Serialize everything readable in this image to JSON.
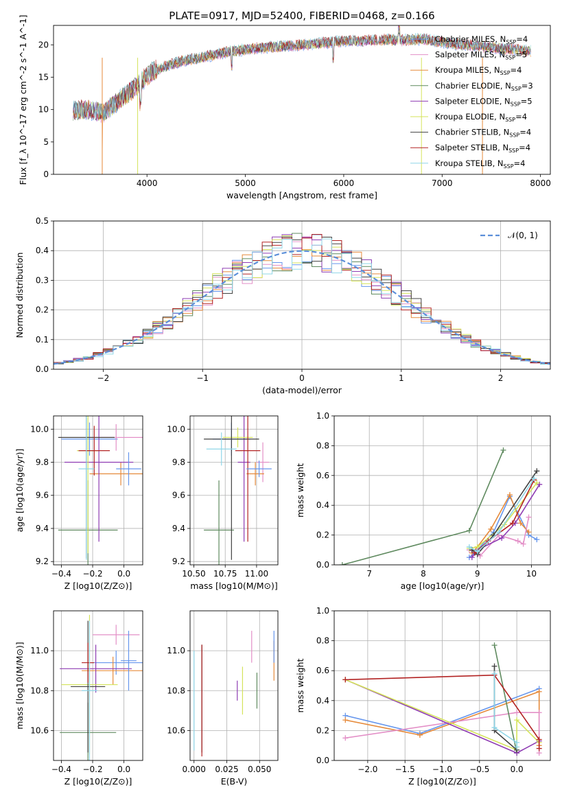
{
  "figure_title": "PLATE=0917, MJD=52400, FIBERID=0468, z=0.166",
  "colors": [
    "#e68a3a",
    "#5f8a5f",
    "#8e3bb3",
    "#d4e35a",
    "#404040",
    "#b22222",
    "#8fd6e8",
    "#6495ed",
    "#e38fc7",
    "#228b22",
    "#4682b4",
    "#ff7f0e",
    "#7fbfbf",
    "#888888"
  ],
  "chart_data": [
    {
      "id": "spectrum",
      "type": "line",
      "title": "PLATE=0917, MJD=52400, FIBERID=0468, z=0.166",
      "xlabel": "wavelength [Angstrom, rest frame]",
      "ylabel": "Flux [f_λ 10^-17 erg cm^-2 s^-1 A^-1]",
      "xlim": [
        3050,
        8100
      ],
      "ylim": [
        0,
        23
      ],
      "xticks": [
        4000,
        5000,
        6000,
        7000,
        8000
      ],
      "yticks": [
        0,
        5,
        10,
        15,
        20
      ],
      "grid": false,
      "legend_position": "top-right",
      "x": [
        3250,
        3400,
        3550,
        3700,
        3850,
        3950,
        4050,
        4200,
        4400,
        4600,
        4800,
        5000,
        5200,
        5400,
        5600,
        5800,
        6000,
        6200,
        6400,
        6600,
        6800,
        7000,
        7200,
        7400,
        7600,
        7800,
        7900
      ],
      "y": [
        9.8,
        10.0,
        9.5,
        11.2,
        13.0,
        14.5,
        15.8,
        16.8,
        17.6,
        18.2,
        18.8,
        19.3,
        19.6,
        19.8,
        20.0,
        20.3,
        20.6,
        20.6,
        20.8,
        20.7,
        20.9,
        20.4,
        20.0,
        19.8,
        19.4,
        19.2,
        19.0
      ],
      "legend": [
        {
          "label": "Chabrier MILES, N",
          "sub": "SSP",
          "suffix": "=4",
          "color_index": 7
        },
        {
          "label": "Salpeter MILES, N",
          "sub": "SSP",
          "suffix": "=5",
          "color_index": 8
        },
        {
          "label": "Kroupa MILES, N",
          "sub": "SSP",
          "suffix": "=4",
          "color_index": 0
        },
        {
          "label": "Chabrier ELODIE, N",
          "sub": "SSP",
          "suffix": "=3",
          "color_index": 1
        },
        {
          "label": "Salpeter ELODIE, N",
          "sub": "SSP",
          "suffix": "=5",
          "color_index": 2
        },
        {
          "label": "Kroupa ELODIE, N",
          "sub": "SSP",
          "suffix": "=4",
          "color_index": 3
        },
        {
          "label": "Chabrier STELIB, N",
          "sub": "SSP",
          "suffix": "=4",
          "color_index": 4
        },
        {
          "label": "Salpeter STELIB, N",
          "sub": "SSP",
          "suffix": "=4",
          "color_index": 5
        },
        {
          "label": "Kroupa STELIB, N",
          "sub": "SSP",
          "suffix": "=4",
          "color_index": 6
        }
      ]
    },
    {
      "id": "residuals",
      "type": "line",
      "xlabel": "(data-model)/error",
      "ylabel": "Normed distribution",
      "xlim": [
        -2.5,
        2.5
      ],
      "ylim": [
        0,
        0.5
      ],
      "xticks": [
        -2,
        -1,
        0,
        1,
        2
      ],
      "yticks": [
        0.0,
        0.1,
        0.2,
        0.3,
        0.4,
        0.5
      ],
      "grid": true,
      "legend_position": "top-right",
      "normal_label": "𝒩(0, 1)",
      "bin_width": 0.1,
      "bin_start": -2.5
    },
    {
      "id": "age_vs_Z",
      "type": "scatter",
      "xlabel": "Z [log10(Z/Z⊙)]",
      "ylabel": "age  [log10(age/yr)]",
      "xlim": [
        -0.45,
        0.12
      ],
      "ylim": [
        9.18,
        10.08
      ],
      "xticks": [
        -0.4,
        -0.2,
        0.0
      ],
      "yticks": [
        9.2,
        9.4,
        9.6,
        9.8,
        10.0
      ],
      "grid": true,
      "points": [
        {
          "x": -0.22,
          "y": 9.94,
          "xerr": 0.18,
          "yerr": 0.1,
          "c": 7
        },
        {
          "x": -0.05,
          "y": 9.95,
          "xerr": 0.18,
          "yerr": 0.08,
          "c": 8
        },
        {
          "x": -0.02,
          "y": 9.73,
          "xerr": 0.2,
          "yerr": 0.07,
          "c": 0
        },
        {
          "x": -0.23,
          "y": 9.39,
          "xerr": 0.19,
          "yerr": 0.3,
          "c": 1
        },
        {
          "x": -0.16,
          "y": 9.8,
          "xerr": 0.22,
          "yerr": 0.48,
          "c": 2
        },
        {
          "x": -0.23,
          "y": 9.87,
          "xerr": 0.07,
          "yerr": 0.62,
          "c": 3
        },
        {
          "x": -0.24,
          "y": 9.95,
          "xerr": 0.18,
          "yerr": 0.73,
          "c": 4
        },
        {
          "x": -0.19,
          "y": 9.87,
          "xerr": 0.1,
          "yerr": 0.15,
          "c": 5
        },
        {
          "x": -0.24,
          "y": 9.76,
          "xerr": 0.05,
          "yerr": 0.55,
          "c": 6
        },
        {
          "x": 0.03,
          "y": 9.76,
          "xerr": 0.08,
          "yerr": 0.1,
          "c": 7
        }
      ]
    },
    {
      "id": "age_vs_mass",
      "type": "scatter",
      "xlabel": "mass [log10(M/M⊙)]",
      "ylabel": "",
      "xlim": [
        10.47,
        11.17
      ],
      "ylim": [
        9.18,
        10.08
      ],
      "xticks": [
        10.5,
        10.75,
        11.0
      ],
      "yticks": [
        9.2,
        9.4,
        9.6,
        9.8,
        10.0
      ],
      "grid": true,
      "points": [
        {
          "x": 10.8,
          "y": 9.94,
          "xerr": 0.15,
          "yerr": 0.1,
          "c": 7
        },
        {
          "x": 11.05,
          "y": 9.8,
          "xerr": 0.05,
          "yerr": 0.12,
          "c": 8
        },
        {
          "x": 10.99,
          "y": 9.73,
          "xerr": 0.07,
          "yerr": 0.07,
          "c": 0
        },
        {
          "x": 10.7,
          "y": 9.39,
          "xerr": 0.12,
          "yerr": 0.3,
          "c": 1
        },
        {
          "x": 10.9,
          "y": 9.8,
          "xerr": 0.05,
          "yerr": 0.48,
          "c": 2
        },
        {
          "x": 10.85,
          "y": 9.95,
          "xerr": 0.12,
          "yerr": 0.06,
          "c": 3
        },
        {
          "x": 10.8,
          "y": 9.94,
          "xerr": 0.22,
          "yerr": 0.73,
          "c": 4
        },
        {
          "x": 10.93,
          "y": 9.87,
          "xerr": 0.1,
          "yerr": 0.55,
          "c": 5
        },
        {
          "x": 10.72,
          "y": 9.88,
          "xerr": 0.12,
          "yerr": 0.1,
          "c": 6
        },
        {
          "x": 11.02,
          "y": 9.76,
          "xerr": 0.1,
          "yerr": 0.05,
          "c": 7
        }
      ]
    },
    {
      "id": "weight_vs_age",
      "type": "line",
      "xlabel": "age  [log10(age/yr)]",
      "ylabel": "mass weight",
      "xlim": [
        6.35,
        10.35
      ],
      "ylim": [
        0,
        1
      ],
      "xticks": [
        7,
        8,
        9,
        10
      ],
      "yticks": [
        0.0,
        0.2,
        0.4,
        0.6,
        0.8,
        1.0
      ],
      "grid": true,
      "series": [
        {
          "c": 7,
          "x": [
            8.85,
            8.95,
            9.3,
            9.6,
            9.95,
            10.1
          ],
          "y": [
            0.05,
            0.08,
            0.22,
            0.46,
            0.2,
            0.17
          ]
        },
        {
          "c": 0,
          "x": [
            8.9,
            9.0,
            9.25,
            9.6,
            9.8,
            9.95
          ],
          "y": [
            0.08,
            0.12,
            0.24,
            0.47,
            0.28,
            0.22
          ]
        },
        {
          "c": 8,
          "x": [
            8.85,
            9.05,
            9.4,
            9.75,
            9.85,
            9.95
          ],
          "y": [
            0.1,
            0.06,
            0.2,
            0.16,
            0.14,
            0.32
          ]
        },
        {
          "c": 1,
          "x": [
            6.5,
            8.85,
            9.48
          ],
          "y": [
            0.0,
            0.23,
            0.77
          ]
        },
        {
          "c": 2,
          "x": [
            8.9,
            9.0,
            9.45,
            9.7,
            10.15
          ],
          "y": [
            0.05,
            0.1,
            0.18,
            0.28,
            0.54
          ]
        },
        {
          "c": 3,
          "x": [
            8.85,
            9.0,
            9.5,
            10.1
          ],
          "y": [
            0.11,
            0.12,
            0.27,
            0.55
          ]
        },
        {
          "c": 4,
          "x": [
            8.9,
            9.0,
            9.3,
            10.1
          ],
          "y": [
            0.1,
            0.07,
            0.2,
            0.63
          ]
        },
        {
          "c": 5,
          "x": [
            8.95,
            9.2,
            9.65,
            10.05
          ],
          "y": [
            0.08,
            0.16,
            0.28,
            0.57
          ]
        },
        {
          "c": 6,
          "x": [
            8.85,
            9.0,
            9.4,
            10.05
          ],
          "y": [
            0.12,
            0.09,
            0.22,
            0.58
          ]
        }
      ]
    },
    {
      "id": "mass_vs_Z",
      "type": "scatter",
      "xlabel": "Z [log10(Z/Z⊙)]",
      "ylabel": "mass [log10(M/M⊙)]",
      "xlim": [
        -0.45,
        0.12
      ],
      "ylim": [
        10.45,
        11.2
      ],
      "xticks": [
        -0.4,
        -0.2,
        0.0
      ],
      "yticks": [
        10.6,
        10.8,
        11.0
      ],
      "grid": true,
      "points": [
        {
          "x": -0.05,
          "y": 11.08,
          "xerr": 0.15,
          "yerr": 0.05,
          "c": 8
        },
        {
          "x": -0.05,
          "y": 10.94,
          "xerr": 0.17,
          "yerr": 0.06,
          "c": 7
        },
        {
          "x": -0.07,
          "y": 10.9,
          "xerr": 0.2,
          "yerr": 0.07,
          "c": 0
        },
        {
          "x": -0.23,
          "y": 10.59,
          "xerr": 0.18,
          "yerr": 0.15,
          "c": 1
        },
        {
          "x": -0.18,
          "y": 10.91,
          "xerr": 0.23,
          "yerr": 0.12,
          "c": 2
        },
        {
          "x": -0.22,
          "y": 10.83,
          "xerr": 0.18,
          "yerr": 0.35,
          "c": 3
        },
        {
          "x": -0.23,
          "y": 10.82,
          "xerr": 0.11,
          "yerr": 0.33,
          "c": 4
        },
        {
          "x": -0.23,
          "y": 10.94,
          "xerr": 0.04,
          "yerr": 0.1,
          "c": 5
        },
        {
          "x": -0.22,
          "y": 10.8,
          "xerr": 0.05,
          "yerr": 0.35,
          "c": 6
        },
        {
          "x": 0.03,
          "y": 10.95,
          "xerr": 0.05,
          "yerr": 0.15,
          "c": 7
        }
      ]
    },
    {
      "id": "mass_vs_ebv",
      "type": "scatter",
      "xlabel": "E(B-V)",
      "ylabel": "",
      "xlim": [
        -0.003,
        0.064
      ],
      "ylim": [
        10.45,
        11.2
      ],
      "xticks": [
        0.0,
        0.025,
        0.05
      ],
      "yticks": [
        10.6,
        10.8,
        11.0
      ],
      "grid": true,
      "points": [
        {
          "x": 0.0,
          "y": 10.75,
          "xerr": 0,
          "yerr": 0.25,
          "c": 6
        },
        {
          "x": 0.006,
          "y": 10.76,
          "xerr": 0,
          "yerr": 0.27,
          "c": 4
        },
        {
          "x": 0.006,
          "y": 10.75,
          "xerr": 0,
          "yerr": 0.28,
          "c": 5
        },
        {
          "x": 0.033,
          "y": 10.8,
          "xerr": 0,
          "yerr": 0.05,
          "c": 2
        },
        {
          "x": 0.037,
          "y": 10.8,
          "xerr": 0,
          "yerr": 0.12,
          "c": 3
        },
        {
          "x": 0.044,
          "y": 11.02,
          "xerr": 0,
          "yerr": 0.08,
          "c": 8
        },
        {
          "x": 0.048,
          "y": 10.8,
          "xerr": 0,
          "yerr": 0.09,
          "c": 1
        },
        {
          "x": 0.061,
          "y": 10.95,
          "xerr": 0,
          "yerr": 0.1,
          "c": 0
        },
        {
          "x": 0.061,
          "y": 11.02,
          "xerr": 0,
          "yerr": 0.08,
          "c": 7
        }
      ]
    },
    {
      "id": "weight_vs_Z",
      "type": "line",
      "xlabel": "Z [log10(Z/Z⊙)]",
      "ylabel": "mass weight",
      "xlim": [
        -2.45,
        0.45
      ],
      "ylim": [
        0,
        1
      ],
      "xticks": [
        -2.0,
        -1.5,
        -1.0,
        -0.5,
        0.0
      ],
      "yticks": [
        0.0,
        0.2,
        0.4,
        0.6,
        0.8,
        1.0
      ],
      "grid": true,
      "series": [
        {
          "c": 7,
          "x": [
            -2.3,
            -1.3,
            0.3
          ],
          "y": [
            0.3,
            0.18,
            0.48
          ]
        },
        {
          "c": 0,
          "x": [
            -2.3,
            -1.3,
            0.3,
            0.3
          ],
          "y": [
            0.27,
            0.17,
            0.46,
            0.1
          ]
        },
        {
          "c": 8,
          "x": [
            -2.3,
            0.0,
            0.3,
            0.3
          ],
          "y": [
            0.15,
            0.32,
            0.32,
            0.05
          ]
        },
        {
          "c": 1,
          "x": [
            -0.3,
            0.0,
            0.0
          ],
          "y": [
            0.77,
            0.05,
            0.07
          ]
        },
        {
          "c": 2,
          "x": [
            -2.3,
            0.0,
            0.3
          ],
          "y": [
            0.54,
            0.05,
            0.13
          ]
        },
        {
          "c": 3,
          "x": [
            -2.3,
            0.0,
            0.0,
            0.3
          ],
          "y": [
            0.54,
            0.07,
            0.27,
            0.12
          ]
        },
        {
          "c": 4,
          "x": [
            -0.3,
            -0.3,
            0.0
          ],
          "y": [
            0.63,
            0.2,
            0.07
          ]
        },
        {
          "c": 5,
          "x": [
            -2.3,
            -0.3,
            0.3,
            0.3
          ],
          "y": [
            0.54,
            0.57,
            0.14,
            0.08
          ]
        },
        {
          "c": 6,
          "x": [
            -0.3,
            -0.3,
            0.0,
            0.0
          ],
          "y": [
            0.58,
            0.22,
            0.12,
            0.09
          ]
        }
      ]
    }
  ]
}
